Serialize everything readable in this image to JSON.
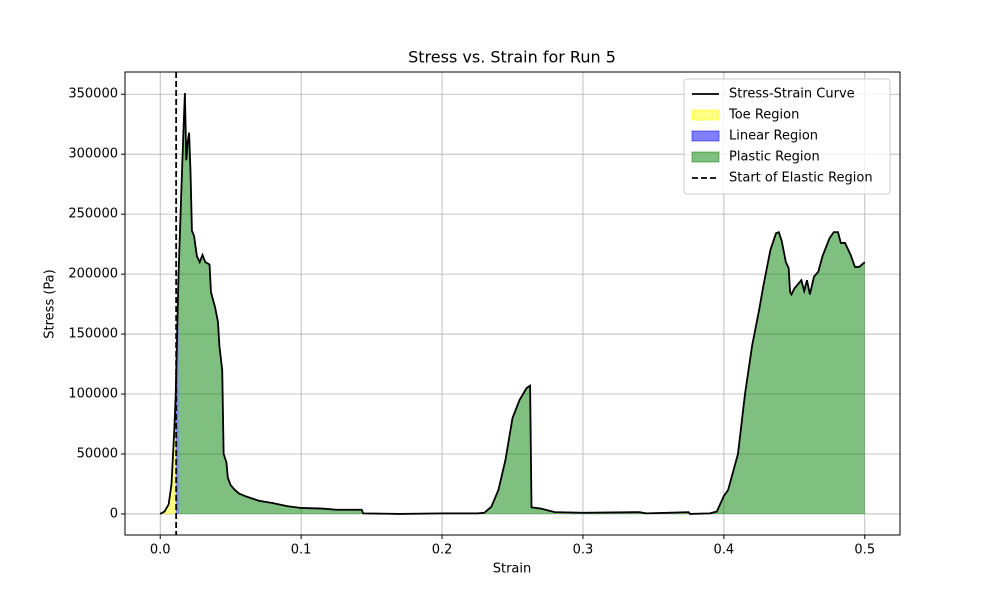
{
  "chart_data": {
    "type": "line",
    "title": "Stress vs. Strain for Run 5",
    "xlabel": "Strain",
    "ylabel": "Stress (Pa)",
    "x": [
      0,
      0.003,
      0.006,
      0.008,
      0.01,
      0.011,
      0.012,
      0.013,
      0.015,
      0.0165,
      0.0175,
      0.0185,
      0.0195,
      0.0205,
      0.0215,
      0.0225,
      0.024,
      0.026,
      0.028,
      0.03,
      0.032,
      0.035,
      0.036,
      0.039,
      0.041,
      0.042,
      0.044,
      0.045,
      0.047,
      0.048,
      0.05,
      0.053,
      0.056,
      0.06,
      0.065,
      0.07,
      0.08,
      0.09,
      0.1,
      0.115,
      0.125,
      0.143,
      0.144,
      0.17,
      0.2,
      0.225,
      0.23,
      0.235,
      0.24,
      0.245,
      0.25,
      0.255,
      0.26,
      0.2625,
      0.2635,
      0.27,
      0.28,
      0.3,
      0.34,
      0.345,
      0.375,
      0.376,
      0.39,
      0.395,
      0.4,
      0.403,
      0.41,
      0.415,
      0.42,
      0.425,
      0.428,
      0.433,
      0.437,
      0.439,
      0.441,
      0.444,
      0.446,
      0.447,
      0.448,
      0.45,
      0.455,
      0.457,
      0.459,
      0.461,
      0.464,
      0.467,
      0.47,
      0.475,
      0.478,
      0.481,
      0.483,
      0.486,
      0.49,
      0.493,
      0.496,
      0.5
    ],
    "series": [
      {
        "name": "Stress-Strain Curve",
        "color": "#000000",
        "values": [
          0,
          2000,
          8000,
          25000,
          70000,
          100000,
          150000,
          200000,
          270000,
          320000,
          351000,
          295000,
          310000,
          318000,
          285000,
          236000,
          232000,
          215000,
          210000,
          216000,
          210000,
          208000,
          185000,
          172000,
          160000,
          140000,
          120000,
          50000,
          43000,
          30000,
          24000,
          20000,
          17000,
          15000,
          13000,
          11000,
          9000,
          6500,
          5000,
          4500,
          3500,
          3500,
          500,
          0,
          500,
          500,
          1000,
          6000,
          20000,
          45000,
          80000,
          95000,
          105000,
          107000,
          5500,
          4500,
          1500,
          1000,
          1500,
          500,
          1500,
          0,
          500,
          2000,
          15000,
          20000,
          50000,
          100000,
          140000,
          170000,
          190000,
          220000,
          234000,
          235000,
          228000,
          210000,
          205000,
          185000,
          183000,
          188000,
          195000,
          186000,
          195000,
          183000,
          198000,
          202000,
          215000,
          230000,
          235000,
          235000,
          226000,
          226000,
          216000,
          206000,
          206000,
          210000
        ]
      }
    ],
    "regions": [
      {
        "name": "Toe Region",
        "color": "#ffff00",
        "alpha": 0.5,
        "range": [
          0,
          0.011
        ]
      },
      {
        "name": "Linear Region",
        "color": "#0000ff",
        "alpha": 0.5,
        "range": [
          0.011,
          0.013
        ]
      },
      {
        "name": "Plastic Region",
        "color": "#008000",
        "alpha": 0.5,
        "range": [
          0.013,
          0.5
        ]
      }
    ],
    "vline": {
      "name": "Start of Elastic Region",
      "x": 0.0113,
      "color": "#000000"
    },
    "xlim": [
      -0.025,
      0.525
    ],
    "xticks": [
      {
        "value": 0,
        "label": "0.0"
      },
      0.1,
      0.2,
      0.3,
      0.4,
      0.5
    ],
    "ylim": [
      -17550,
      368550
    ],
    "yticks": [
      0,
      50000,
      100000,
      150000,
      200000,
      250000,
      300000,
      350000
    ],
    "grid": true,
    "legend": "upper right"
  }
}
